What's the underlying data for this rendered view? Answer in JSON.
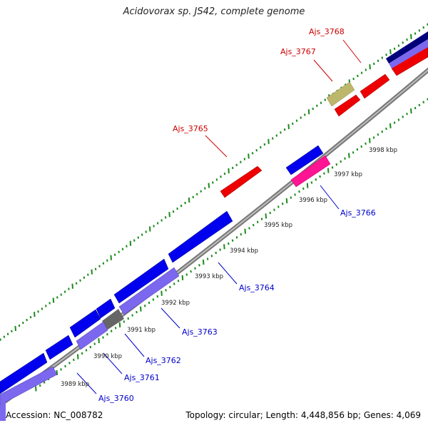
{
  "title": "Acidovorax sp. JS42, complete genome",
  "footer": {
    "accession": "Accession: NC_008782",
    "summary": "Topology: circular; Length: 4,448,856 bp; Genes: 4,069"
  },
  "colors": {
    "backbone": "#888888",
    "tick": "#1a8a1a",
    "forward_gene": "#ff0000",
    "reverse_gene": "#0000ee",
    "label_forward": "#cc0000",
    "label_reverse": "#0000cc"
  },
  "kbp_ticks": [
    "3989 kbp",
    "3990 kbp",
    "3991 kbp",
    "3992 kbp",
    "3993 kbp",
    "3994 kbp",
    "3995 kbp",
    "3996 kbp",
    "3997 kbp",
    "3998 kbp"
  ],
  "gene_labels": [
    {
      "id": "Ajs_3768",
      "strand": "forward"
    },
    {
      "id": "Ajs_3767",
      "strand": "forward"
    },
    {
      "id": "Ajs_3765",
      "strand": "forward"
    },
    {
      "id": "Ajs_3766",
      "strand": "reverse"
    },
    {
      "id": "Ajs_3764",
      "strand": "reverse"
    },
    {
      "id": "Ajs_3763",
      "strand": "reverse"
    },
    {
      "id": "Ajs_3762",
      "strand": "reverse"
    },
    {
      "id": "Ajs_3761",
      "strand": "reverse"
    },
    {
      "id": "Ajs_3760",
      "strand": "reverse"
    }
  ]
}
